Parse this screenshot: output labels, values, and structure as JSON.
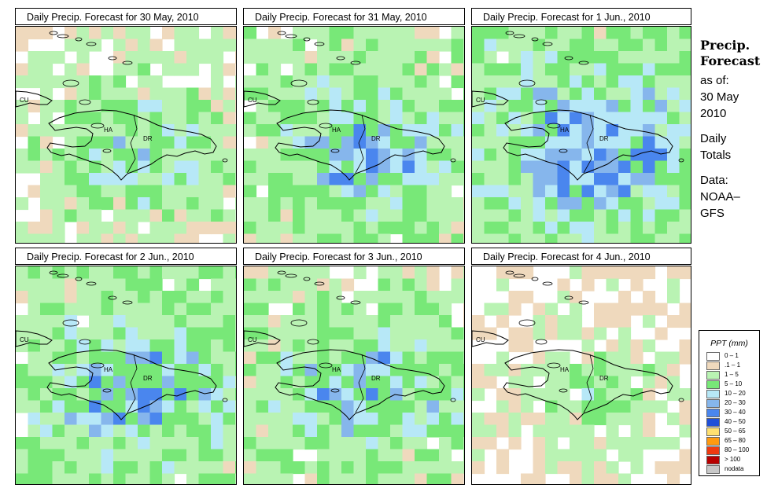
{
  "panels": [
    {
      "title": "Daily Precip. Forecast for  30 May, 2010",
      "seed": 3,
      "wet": 0.0
    },
    {
      "title": "Daily Precip. Forecast for  31 May, 2010",
      "seed": 11,
      "wet": 0.25
    },
    {
      "title": "Daily Precip. Forecast for  1 Jun., 2010",
      "seed": 23,
      "wet": 0.45
    },
    {
      "title": "Daily Precip. Forecast for  2 Jun., 2010",
      "seed": 37,
      "wet": 0.3
    },
    {
      "title": "Daily Precip. Forecast for  3 Jun., 2010",
      "seed": 53,
      "wet": 0.2
    },
    {
      "title": "Daily Precip. Forecast for  4 Jun., 2010",
      "seed": 71,
      "wet": -0.35
    }
  ],
  "map_labels": {
    "cuba": "CU",
    "haiti": "HA",
    "dominican_republic": "DR"
  },
  "side": {
    "heading_1": "Precip.",
    "heading_2": "Forecast",
    "as_of": "as of:",
    "date_1": "30 May",
    "date_2": "2010",
    "totals_1": "Daily",
    "totals_2": "Totals",
    "data_1": "Data:",
    "data_2": "NOAA–",
    "data_3": "GFS"
  },
  "legend": {
    "title": "PPT (mm)",
    "items": [
      {
        "label": "0 – 1",
        "color": "#ffffff"
      },
      {
        "label": ".1 – 1",
        "color": "#efd9bd"
      },
      {
        "label": "1 – 5",
        "color": "#b9f3b3"
      },
      {
        "label": "5 – 10",
        "color": "#78e878"
      },
      {
        "label": "10 – 20",
        "color": "#b7e8f7"
      },
      {
        "label": "20 – 30",
        "color": "#86b6ec"
      },
      {
        "label": "30 – 40",
        "color": "#4a86ee"
      },
      {
        "label": "40 – 50",
        "color": "#2050d8"
      },
      {
        "label": "50 – 65",
        "color": "#ffe070"
      },
      {
        "label": "65 – 80",
        "color": "#ff9a10"
      },
      {
        "label": "80 – 100",
        "color": "#ef3a10"
      },
      {
        "label": "> 100",
        "color": "#b80000"
      },
      {
        "label": "nodata",
        "color": "#c8c8c8"
      }
    ]
  }
}
